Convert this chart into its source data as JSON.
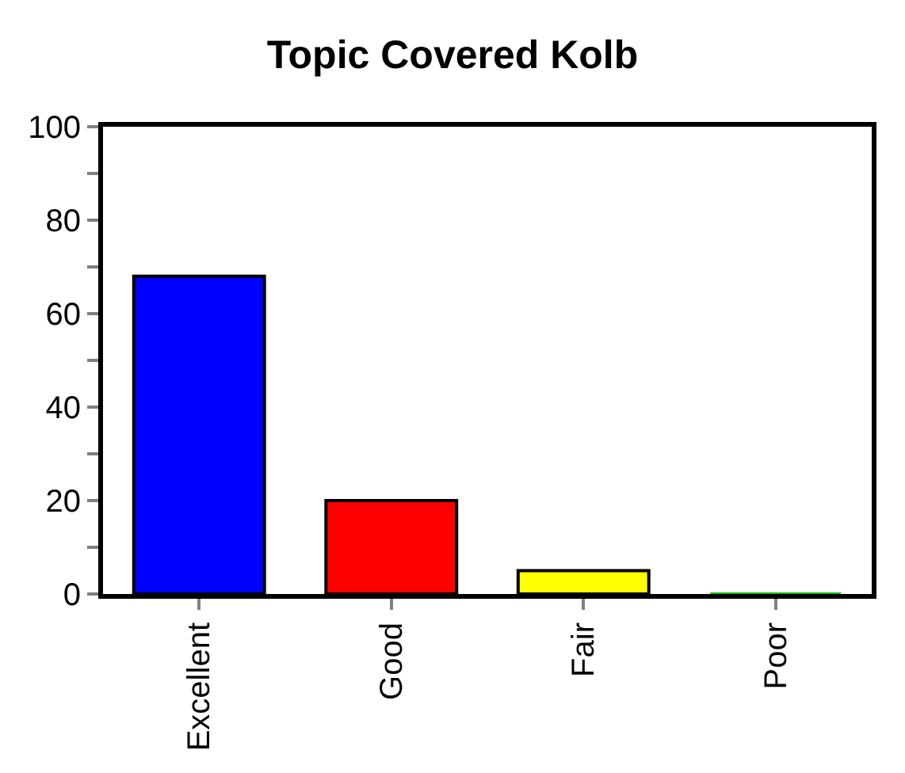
{
  "chart_data": {
    "type": "bar",
    "title": "Topic Covered Kolb",
    "categories": [
      "Excellent",
      "Good",
      "Fair",
      "Poor"
    ],
    "values": [
      68,
      20,
      5,
      0
    ],
    "colors": [
      "#0000ff",
      "#ff0000",
      "#ffff00",
      "#00c000"
    ],
    "ylim": [
      0,
      100
    ],
    "yticks": [
      0,
      {
        "value": 10,
        "label": null
      },
      20,
      {
        "value": 30,
        "label": null
      },
      40,
      {
        "value": 50,
        "label": null
      },
      60,
      {
        "value": 70,
        "label": null
      },
      80,
      {
        "value": 90,
        "label": null
      },
      100
    ]
  }
}
